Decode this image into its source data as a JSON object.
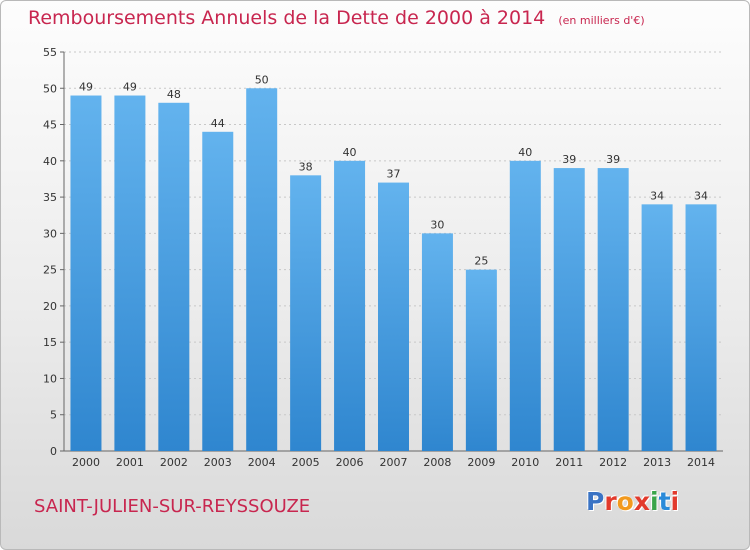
{
  "header": {
    "title": "Remboursements Annuels de la Dette de 2000 à 2014",
    "subtitle": "(en milliers d'€)"
  },
  "footer": {
    "commune": "SAINT-JULIEN-SUR-REYSSOUZE",
    "logo_text": "Proxiti",
    "logo_colors": [
      "#3a73c4",
      "#e23a2c",
      "#f29a1f",
      "#e23a2c",
      "#3aa54a",
      "#2a8ad9",
      "#e23a2c"
    ]
  },
  "colors": {
    "bar_light": "#63b3ee",
    "bar_dark": "#2f86cf",
    "accent": "#c8264f"
  },
  "chart_data": {
    "type": "bar",
    "categories": [
      "2000",
      "2001",
      "2002",
      "2003",
      "2004",
      "2005",
      "2006",
      "2007",
      "2008",
      "2009",
      "2010",
      "2011",
      "2012",
      "2013",
      "2014"
    ],
    "values": [
      49,
      49,
      48,
      44,
      50,
      38,
      40,
      37,
      30,
      25,
      40,
      39,
      39,
      34,
      34
    ],
    "ylim": [
      0,
      55
    ],
    "yticks": [
      0,
      5,
      10,
      15,
      20,
      25,
      30,
      35,
      40,
      45,
      50,
      55
    ],
    "grid": true,
    "legend": "none"
  }
}
